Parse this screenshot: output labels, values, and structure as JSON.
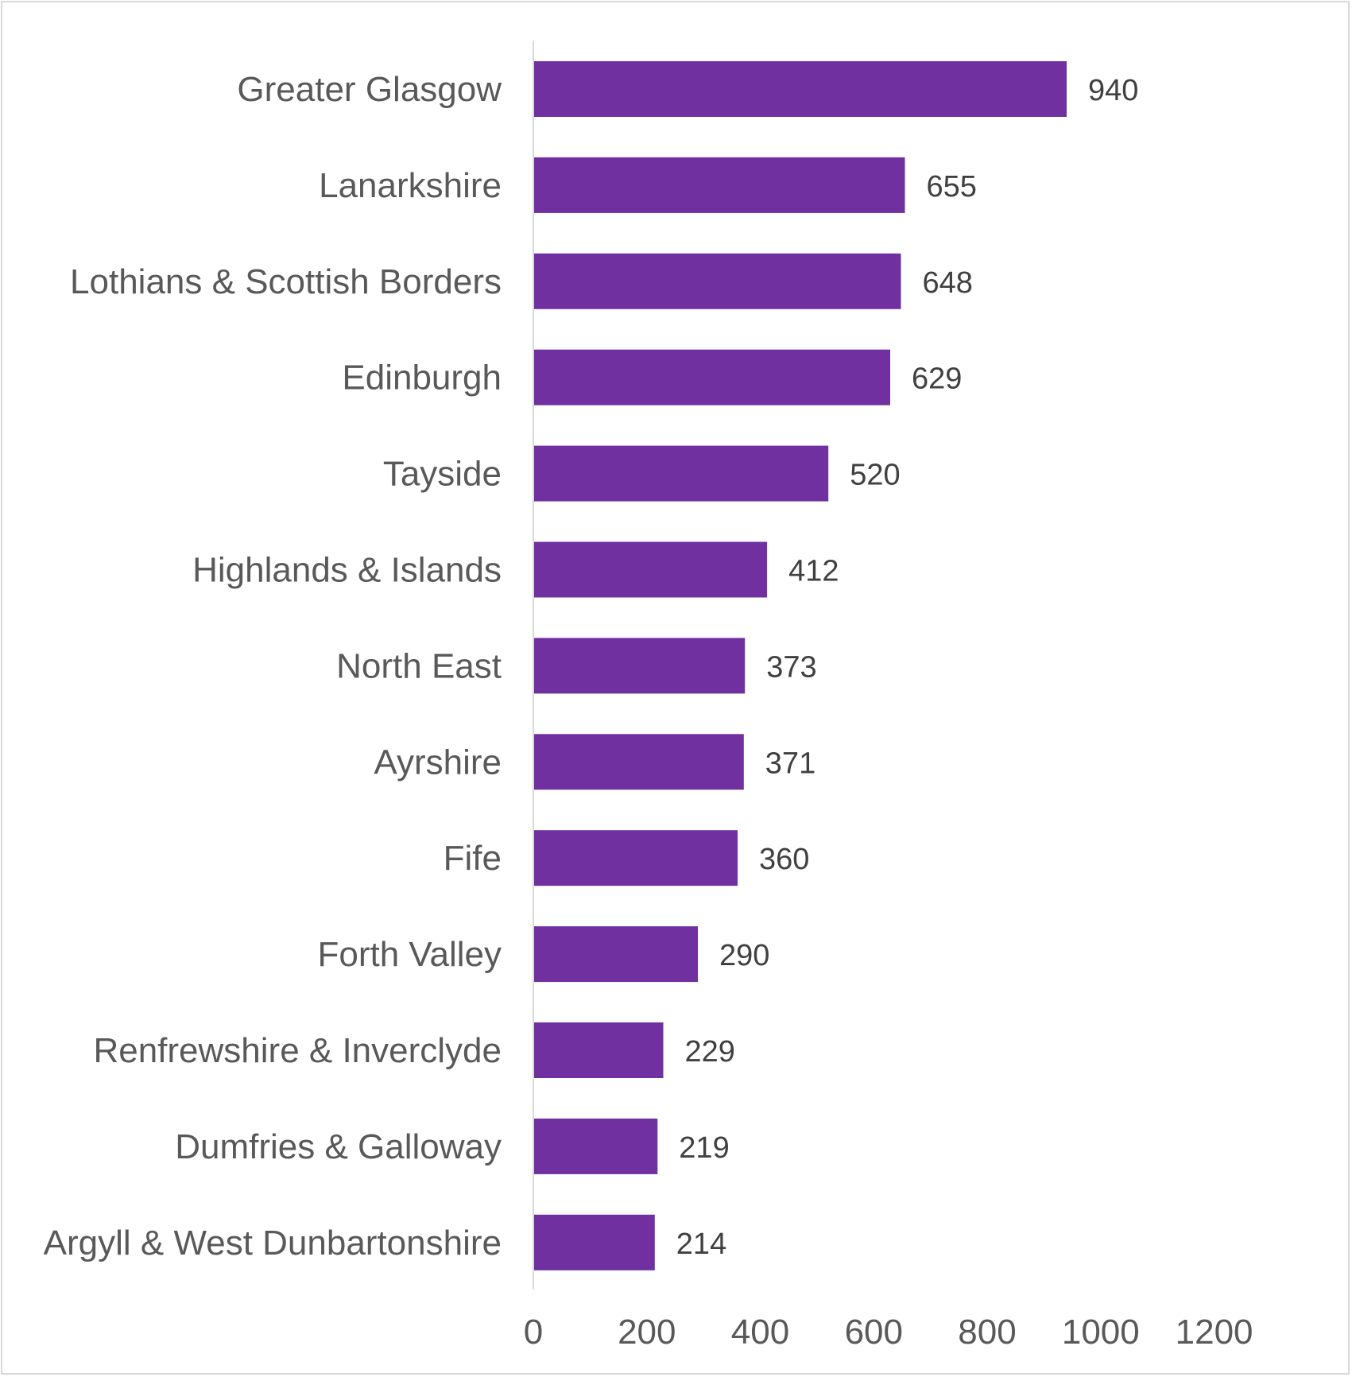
{
  "chart_data": {
    "type": "bar",
    "orientation": "horizontal",
    "categories": [
      "Greater Glasgow",
      "Lanarkshire",
      "Lothians & Scottish Borders",
      "Edinburgh",
      "Tayside",
      "Highlands & Islands",
      "North East",
      "Ayrshire",
      "Fife",
      "Forth Valley",
      "Renfrewshire & Inverclyde",
      "Dumfries & Galloway",
      "Argyll & West Dunbartonshire"
    ],
    "values": [
      940,
      655,
      648,
      629,
      520,
      412,
      373,
      371,
      360,
      290,
      229,
      219,
      214
    ],
    "data_labels": [
      "940",
      "655",
      "648",
      "629",
      "520",
      "412",
      "373",
      "371",
      "360",
      "290",
      "229",
      "219",
      "214"
    ],
    "x_ticks": [
      "0",
      "200",
      "400",
      "600",
      "800",
      "1000",
      "1200"
    ],
    "xlim": [
      0,
      1200
    ],
    "title": "",
    "xlabel": "",
    "ylabel": "",
    "grid": false,
    "legend": "none",
    "colors": {
      "bar": "#7030A0",
      "axis": "#d9d9d9",
      "label_text": "#595959",
      "value_text": "#404040"
    }
  }
}
